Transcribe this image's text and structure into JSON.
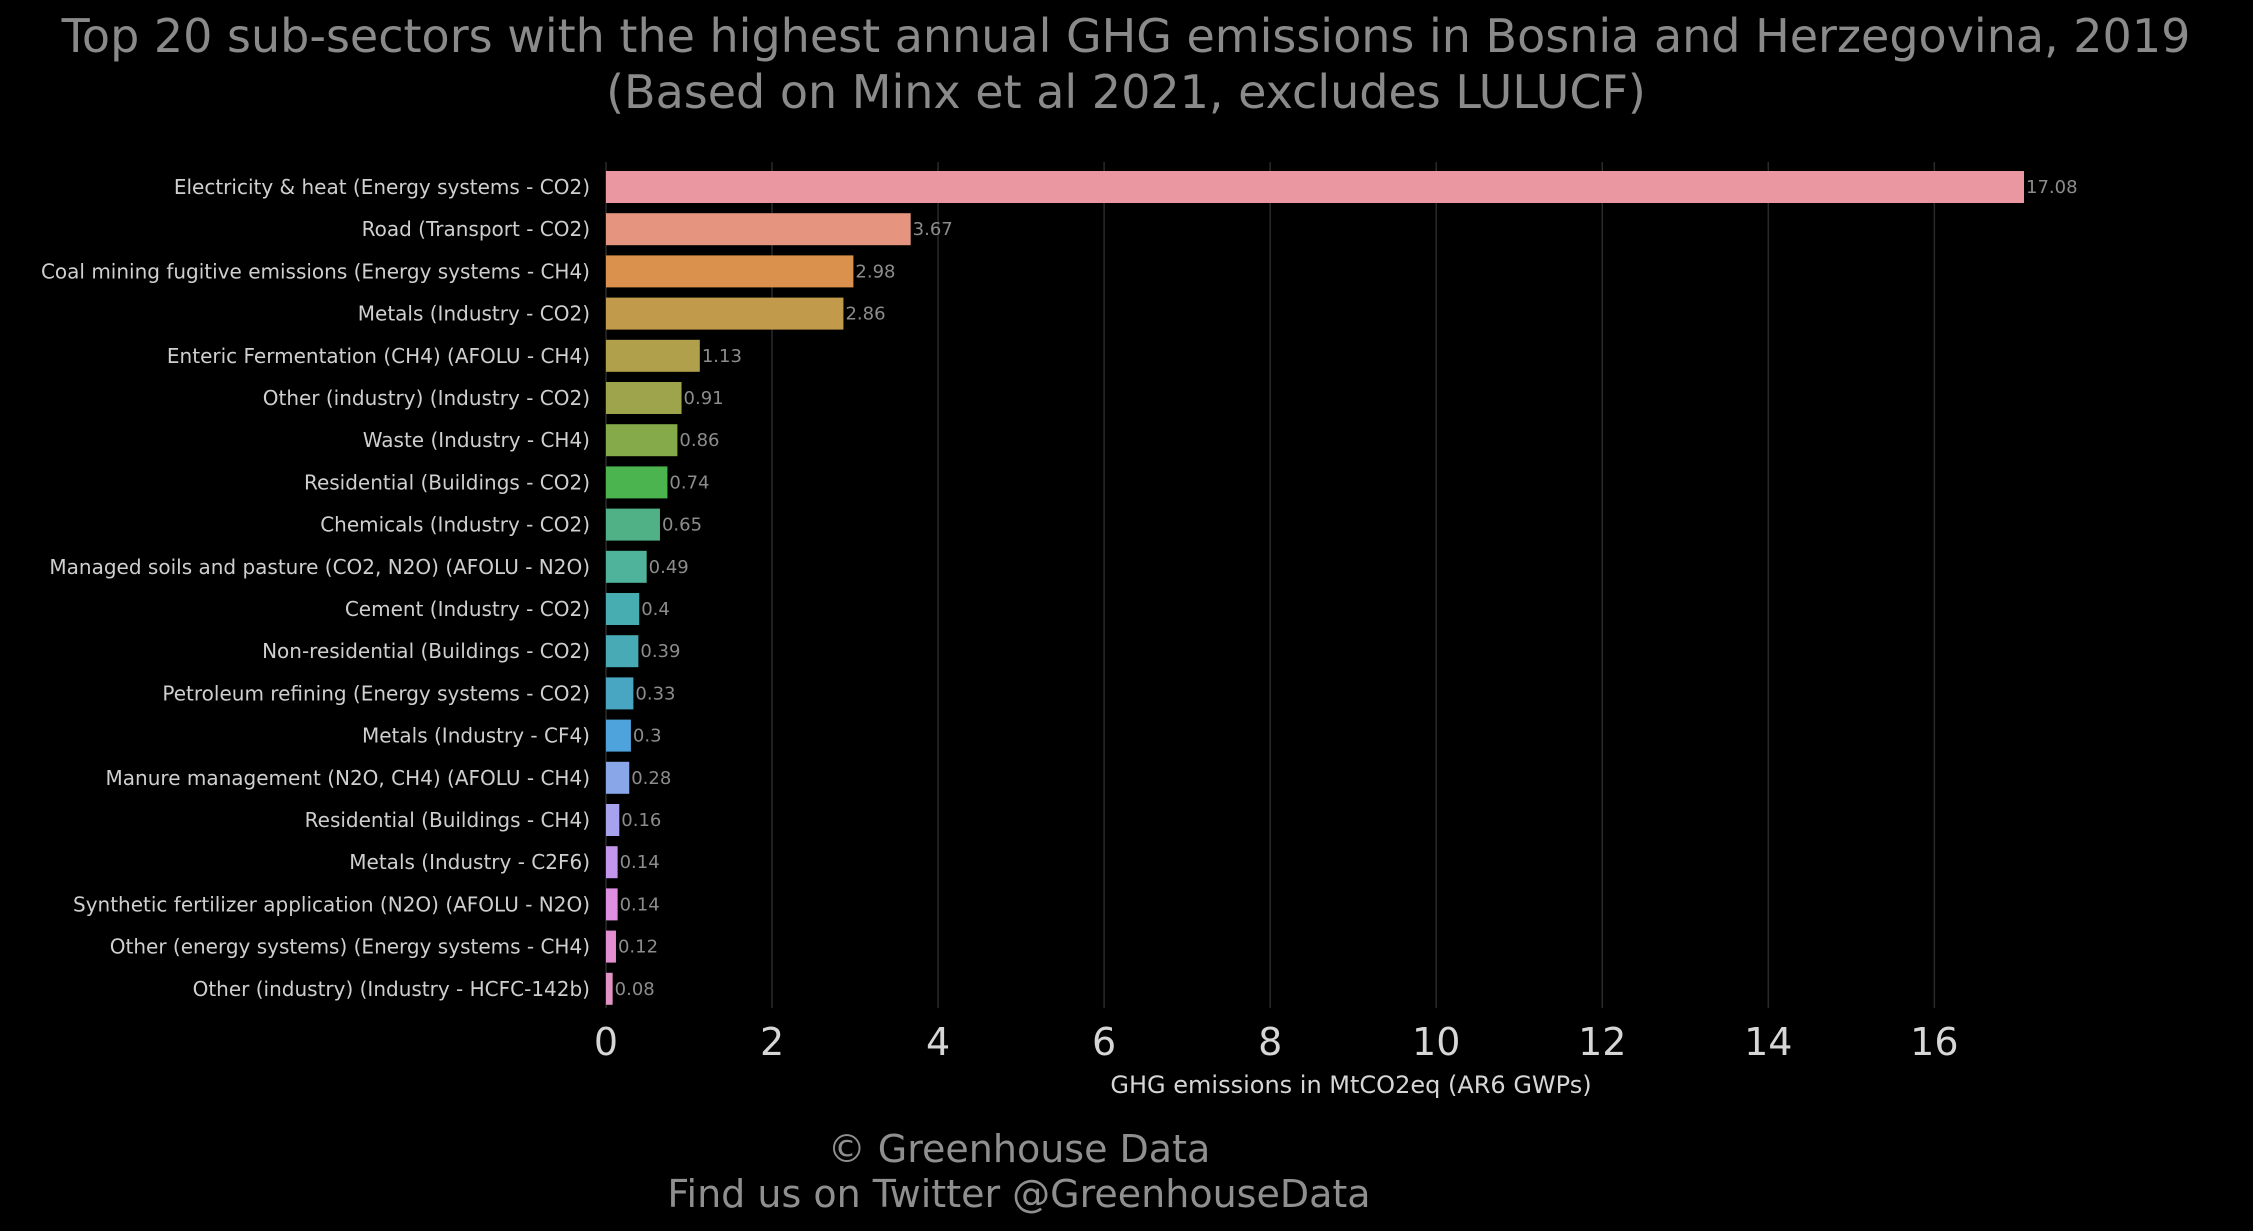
{
  "chart_data": {
    "type": "bar",
    "orientation": "horizontal",
    "title": "Top 20 sub-sectors with the highest annual GHG emissions in Bosnia and Herzegovina, 2019",
    "subtitle": "(Based on Minx et al 2021, excludes LULUCF)",
    "xlabel": "GHG emissions in MtCO2eq (AR6 GWPs)",
    "ylabel": "",
    "xlim": [
      0,
      17.08
    ],
    "x_ticks": [
      0,
      2,
      4,
      6,
      8,
      10,
      12,
      14,
      16
    ],
    "grid": true,
    "legend": "none",
    "categories": [
      "Electricity & heat (Energy systems - CO2)",
      "Road (Transport - CO2)",
      "Coal mining fugitive emissions (Energy systems - CH4)",
      "Metals (Industry - CO2)",
      "Enteric Fermentation (CH4) (AFOLU - CH4)",
      "Other (industry) (Industry - CO2)",
      "Waste (Industry - CH4)",
      "Residential (Buildings - CO2)",
      "Chemicals (Industry - CO2)",
      "Managed soils and pasture (CO2, N2O) (AFOLU - N2O)",
      "Cement (Industry - CO2)",
      "Non-residential (Buildings - CO2)",
      "Petroleum refining (Energy systems - CO2)",
      "Metals (Industry - CF4)",
      "Manure management (N2O, CH4) (AFOLU - CH4)",
      "Residential (Buildings - CH4)",
      "Metals (Industry - C2F6)",
      "Synthetic fertilizer application (N2O) (AFOLU - N2O)",
      "Other (energy systems) (Energy systems - CH4)",
      "Other (industry) (Industry - HCFC-142b)"
    ],
    "values": [
      17.08,
      3.67,
      2.98,
      2.86,
      1.13,
      0.91,
      0.86,
      0.74,
      0.65,
      0.49,
      0.4,
      0.39,
      0.33,
      0.3,
      0.28,
      0.16,
      0.14,
      0.14,
      0.12,
      0.08
    ],
    "value_labels": [
      "17.08",
      "3.67",
      "2.98",
      "2.86",
      "1.13",
      "0.91",
      "0.86",
      "0.74",
      "0.65",
      "0.49",
      "0.4",
      "0.39",
      "0.33",
      "0.3",
      "0.28",
      "0.16",
      "0.14",
      "0.14",
      "0.12",
      "0.08"
    ],
    "bar_colors": [
      "#eb97a2",
      "#e5957f",
      "#d9914d",
      "#c19a4c",
      "#b09f4b",
      "#9ea44b",
      "#84aa49",
      "#4cb44e",
      "#50b187",
      "#4fb39b",
      "#47adb1",
      "#47aab5",
      "#48a6c3",
      "#4fa3dc",
      "#89a7e8",
      "#a6a2ed",
      "#c495ec",
      "#df8fe2",
      "#e28fd2",
      "#e293c3"
    ],
    "footer_lines": [
      "© Greenhouse Data",
      "Find us on Twitter @GreenhouseData"
    ],
    "colors": {
      "background": "#000000",
      "title": "#8a8a8a",
      "axis_text": "#d6d6d6",
      "category_text": "#cfcfcf",
      "value_label": "#8c8c8c",
      "footer": "#8f8f8f",
      "grid": "#2a2a2a"
    }
  }
}
